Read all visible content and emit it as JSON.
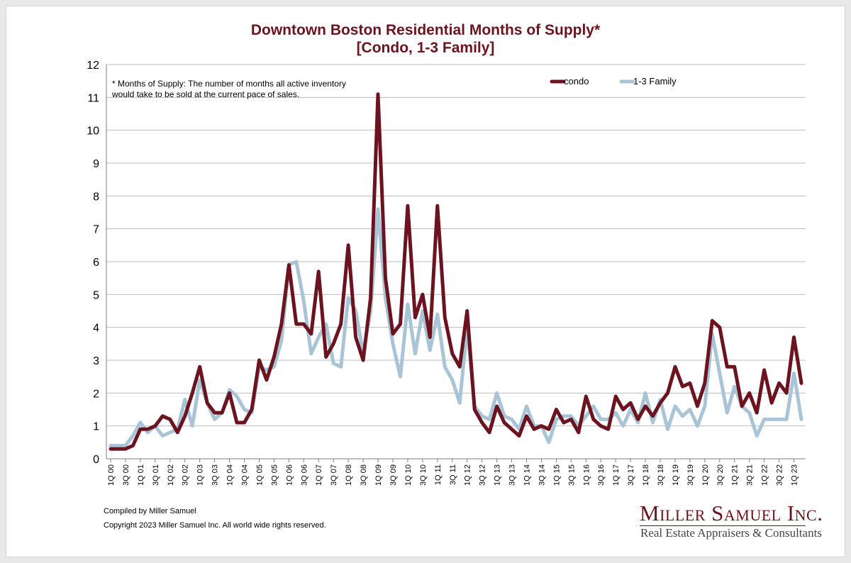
{
  "title_line1": "Downtown Boston Residential Months of Supply*",
  "title_line2": "[Condo, 1-3 Family]",
  "footnote": "* Months of Supply: The number of months all active inventory would take to be sold at the current pace of sales.",
  "credit_line1": "Compiled by Miller Samuel",
  "credit_line2": "Copyright 2023 Miller Samuel Inc.  All world wide rights reserved.",
  "brand_main": "Miller Samuel Inc.",
  "brand_sub": "Real Estate Appraisers & Consultants",
  "colors": {
    "condo": "#6b1420",
    "family": "#a9c4d6",
    "title": "#6b1420",
    "grid": "#bdbdbd"
  },
  "chart_data": {
    "type": "line",
    "title": "Downtown Boston Residential Months of Supply* [Condo, 1-3 Family]",
    "ylim": [
      0,
      12
    ],
    "yticks": [
      0,
      1,
      2,
      3,
      4,
      5,
      6,
      7,
      8,
      9,
      10,
      11,
      12
    ],
    "grid": true,
    "legend_position": "top-right",
    "x_tick_labels": [
      "1Q 00",
      "3Q 00",
      "1Q 01",
      "3Q 01",
      "1Q 02",
      "3Q 02",
      "1Q 03",
      "3Q 03",
      "1Q 04",
      "3Q 04",
      "1Q 05",
      "3Q 05",
      "1Q 06",
      "3Q 06",
      "1Q 07",
      "3Q 07",
      "1Q 08",
      "3Q 08",
      "1Q 09",
      "3Q 09",
      "1Q 10",
      "3Q 10",
      "1Q 11",
      "3Q 11",
      "1Q 12",
      "3Q 12",
      "1Q 13",
      "3Q 13",
      "1Q 14",
      "3Q 14",
      "1Q 15",
      "3Q 15",
      "1Q 16",
      "3Q 16",
      "1Q 17",
      "3Q 17",
      "1Q 18",
      "3Q 18",
      "1Q 19",
      "3Q 19",
      "1Q 20",
      "3Q 20",
      "1Q 21",
      "3Q 21",
      "1Q 22",
      "3Q 22",
      "1Q 23"
    ],
    "series": [
      {
        "name": "condo",
        "values": [
          0.3,
          0.3,
          0.3,
          0.4,
          0.9,
          0.9,
          1.0,
          1.3,
          1.2,
          0.8,
          1.3,
          2.0,
          2.8,
          1.7,
          1.4,
          1.4,
          2.0,
          1.1,
          1.1,
          1.5,
          3.0,
          2.4,
          3.1,
          4.1,
          5.9,
          4.1,
          4.1,
          3.8,
          5.7,
          3.1,
          3.5,
          4.1,
          6.5,
          3.7,
          3.0,
          4.9,
          11.1,
          5.5,
          3.8,
          4.1,
          7.7,
          4.3,
          5.0,
          3.7,
          7.7,
          4.3,
          3.2,
          2.8,
          4.5,
          1.5,
          1.1,
          0.8,
          1.6,
          1.1,
          0.9,
          0.7,
          1.3,
          0.9,
          1.0,
          0.9,
          1.5,
          1.1,
          1.2,
          0.8,
          1.9,
          1.2,
          1.0,
          0.9,
          1.9,
          1.5,
          1.7,
          1.2,
          1.6,
          1.3,
          1.7,
          2.0,
          2.8,
          2.2,
          2.3,
          1.6,
          2.3,
          4.2,
          4.0,
          2.8,
          2.8,
          1.6,
          2.0,
          1.4,
          2.7,
          1.7,
          2.3,
          2.0,
          3.7,
          2.3
        ]
      },
      {
        "name": "1-3 Family",
        "values": [
          0.4,
          0.4,
          0.4,
          0.7,
          1.1,
          0.8,
          1.0,
          0.7,
          0.8,
          0.9,
          1.8,
          1.0,
          2.4,
          1.7,
          1.2,
          1.4,
          2.1,
          1.9,
          1.5,
          1.4,
          2.8,
          2.7,
          2.8,
          3.6,
          5.9,
          6.0,
          4.8,
          3.2,
          3.7,
          4.1,
          2.9,
          2.8,
          4.9,
          4.5,
          3.2,
          4.5,
          7.6,
          4.9,
          3.5,
          2.5,
          4.7,
          3.2,
          4.5,
          3.3,
          4.4,
          2.8,
          2.4,
          1.7,
          4.0,
          1.6,
          1.3,
          1.2,
          2.0,
          1.3,
          1.2,
          0.9,
          1.6,
          1.0,
          1.0,
          0.5,
          1.2,
          1.3,
          1.3,
          1.0,
          1.3,
          1.6,
          1.2,
          1.2,
          1.4,
          1.0,
          1.5,
          1.1,
          2.0,
          1.1,
          1.8,
          0.9,
          1.6,
          1.3,
          1.5,
          1.0,
          1.6,
          3.8,
          2.6,
          1.4,
          2.2,
          1.6,
          1.4,
          0.7,
          1.2,
          1.2,
          1.2,
          1.2,
          2.6,
          1.2
        ]
      }
    ]
  }
}
